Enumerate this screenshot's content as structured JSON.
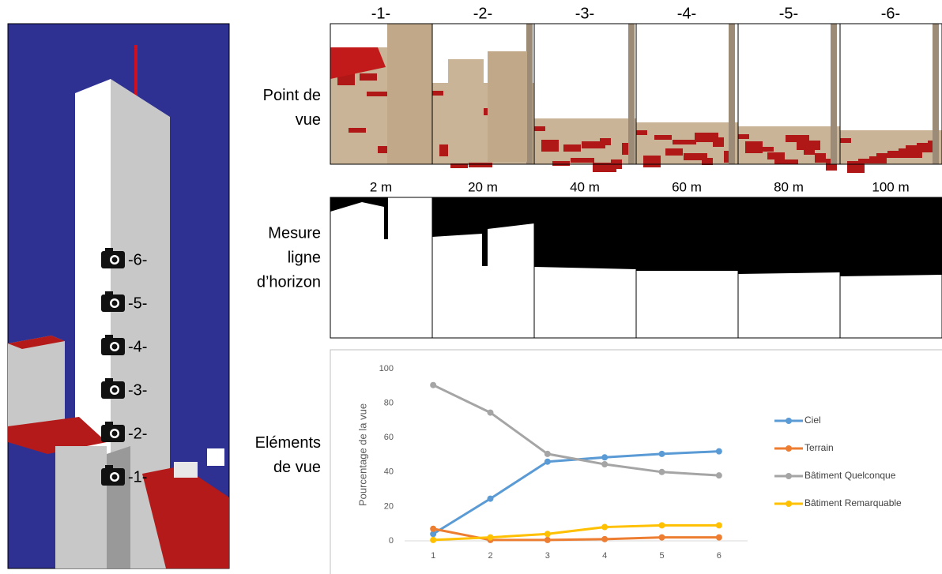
{
  "figure": {
    "view_numbers": [
      "-1-",
      "-2-",
      "-3-",
      "-4-",
      "-5-",
      "-6-"
    ],
    "distances": [
      "2 m",
      "20 m",
      "40 m",
      "60 m",
      "80 m",
      "100 m"
    ],
    "row_labels": [
      [
        "Point de",
        "vue"
      ],
      [
        "Mesure",
        "ligne",
        "d’horizon"
      ],
      [
        "Eléments",
        "de vue"
      ]
    ],
    "camera_labels": [
      "-6-",
      "-5-",
      "-4-",
      "-3-",
      "-2-",
      "-1-"
    ]
  },
  "chart_data": {
    "type": "line",
    "y_label": "Pourcentage de la vue",
    "categories": [
      "1",
      "2",
      "3",
      "4",
      "5",
      "6"
    ],
    "series": [
      {
        "name": "Ciel",
        "color": "#5b9bd5",
        "values": [
          4,
          24.5,
          46,
          48.5,
          50.5,
          52
        ]
      },
      {
        "name": "Terrain",
        "color": "#ed7d31",
        "values": [
          7,
          0.5,
          0.5,
          1,
          2,
          2
        ]
      },
      {
        "name": "Bâtiment Quelconque",
        "color": "#a5a5a5",
        "values": [
          90.5,
          74.5,
          50.5,
          44.5,
          40,
          38
        ]
      },
      {
        "name": "Bâtiment Remarquable",
        "color": "#ffc000",
        "values": [
          0.5,
          2,
          4,
          8,
          9,
          9
        ]
      }
    ],
    "ylim": [
      0,
      100
    ],
    "yticks": [
      0,
      20,
      40,
      60,
      80,
      100
    ],
    "grid": false,
    "legend": "right"
  }
}
